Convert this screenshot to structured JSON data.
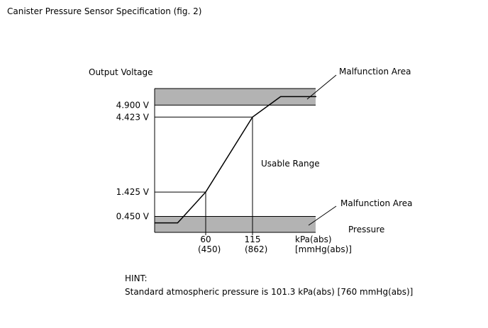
{
  "title": "Canister Pressure Sensor Specification (fig. 2)",
  "chart_data": {
    "type": "line",
    "ylabel": "Output Voltage",
    "xlabel": "Pressure",
    "x_unit_lines": [
      "kPa(abs)",
      "[mmHg(abs)]"
    ],
    "y_ticks": [
      {
        "value": 4.9,
        "label": "4.900 V"
      },
      {
        "value": 4.423,
        "label": "4.423 V"
      },
      {
        "value": 1.425,
        "label": "1.425 V"
      },
      {
        "value": 0.45,
        "label": "0.450 V"
      }
    ],
    "x_ticks": [
      {
        "value": 60,
        "label": "60",
        "sublabel": "(450)"
      },
      {
        "value": 115,
        "label": "115",
        "sublabel": "(862)"
      }
    ],
    "series": [
      {
        "x": [
          0,
          27,
          60,
          115,
          148,
          190
        ],
        "y": [
          0.19,
          0.19,
          1.425,
          4.423,
          5.24,
          5.24
        ]
      }
    ],
    "guides": [
      {
        "x": 60,
        "y": 1.425
      },
      {
        "x": 115,
        "y": 4.423
      }
    ],
    "malfunction_bands": [
      {
        "from": 4.9,
        "to": 5.9,
        "label": "Malfunction Area"
      },
      {
        "from": -0.77,
        "to": 0.45,
        "label": "Malfunction Area"
      }
    ],
    "annotation": "Usable Range",
    "band_color": "#b3b3b3"
  },
  "hint": {
    "label": "HINT:",
    "text": "Standard atmospheric pressure is 101.3 kPa(abs) [760 mmHg(abs)]"
  }
}
